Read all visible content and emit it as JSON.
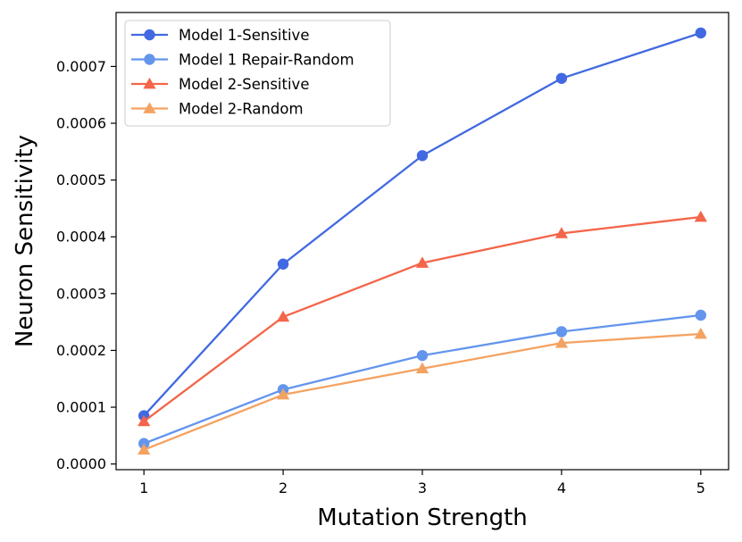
{
  "chart_data": {
    "type": "line",
    "title": "",
    "xlabel": "Mutation Strength",
    "ylabel": "Neuron Sensitivity",
    "x": [
      1,
      2,
      3,
      4,
      5
    ],
    "xticks": [
      "1",
      "2",
      "3",
      "4",
      "5"
    ],
    "xlim": [
      0.8,
      5.2
    ],
    "ylim": [
      -1e-05,
      0.000795
    ],
    "yticks": [
      "0.0000",
      "0.0001",
      "0.0002",
      "0.0003",
      "0.0004",
      "0.0005",
      "0.0006",
      "0.0007"
    ],
    "ytick_values": [
      0,
      0.0001,
      0.0002,
      0.0003,
      0.0004,
      0.0005,
      0.0006,
      0.0007
    ],
    "grid": false,
    "legend_position": "top-left",
    "series": [
      {
        "name": "Model 1-Sensitive",
        "marker": "circle",
        "color": "#4169E1",
        "values": [
          8.5e-05,
          0.000352,
          0.000543,
          0.000679,
          0.000759
        ]
      },
      {
        "name": "Model 1 Repair-Random",
        "marker": "circle",
        "color": "#6495ED",
        "values": [
          3.6e-05,
          0.000131,
          0.000191,
          0.000233,
          0.000262
        ]
      },
      {
        "name": "Model 2-Sensitive",
        "marker": "triangle",
        "color": "#F4654A",
        "values": [
          7.5e-05,
          0.000259,
          0.000354,
          0.000406,
          0.000435
        ]
      },
      {
        "name": "Model 2-Random",
        "marker": "triangle",
        "color": "#F4A261",
        "values": [
          2.5e-05,
          0.000122,
          0.000168,
          0.000213,
          0.000229
        ]
      }
    ]
  }
}
